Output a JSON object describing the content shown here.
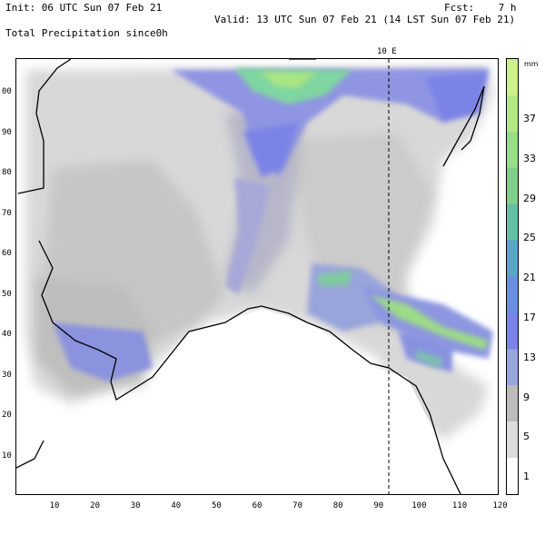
{
  "header": {
    "init": "Init: 06 UTC Sun 07 Feb 21",
    "fcst": "Fcst:    7 h",
    "valid": "Valid: 13 UTC Sun 07 Feb 21 (14 LST Sun 07 Feb 21)",
    "title": "Total Precipitation since0h"
  },
  "map": {
    "x_ticks": [
      "10",
      "20",
      "30",
      "40",
      "50",
      "60",
      "70",
      "80",
      "90",
      "100",
      "110",
      "120"
    ],
    "y_ticks": [
      "00",
      "90",
      "80",
      "70",
      "60",
      "50",
      "40",
      "30",
      "20",
      "10"
    ],
    "meridian_label": "10 E",
    "colors": {
      "land": "#d9d9d9",
      "sea": "#ffffff",
      "coast": "#000000"
    }
  },
  "colorbar": {
    "unit": "mm",
    "labels": [
      "37",
      "33",
      "29",
      "25",
      "21",
      "17",
      "13",
      "9",
      "5",
      "1"
    ],
    "colors": [
      "#ffffff",
      "#dcdcdc",
      "#bcbcbc",
      "#9aa4dc",
      "#7b83e6",
      "#6a8ee0",
      "#5aa6c8",
      "#64c0a4",
      "#7ed08a",
      "#98de82",
      "#b4e882",
      "#cdf08c"
    ]
  }
}
